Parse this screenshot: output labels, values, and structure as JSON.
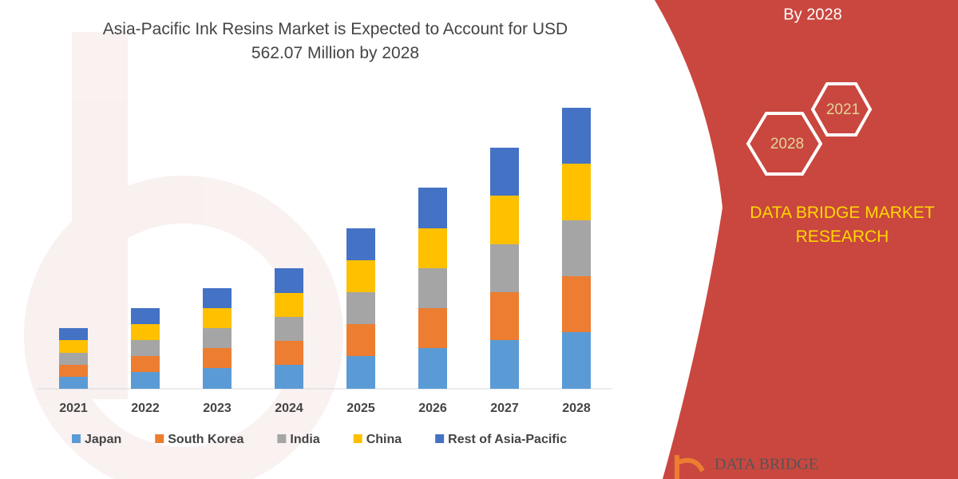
{
  "chart_data": {
    "type": "stacked-bar",
    "title": "Asia-Pacific Ink Resins Market is Expected to Account for USD 562.07 Million by 2028",
    "categories": [
      "2021",
      "2022",
      "2023",
      "2024",
      "2025",
      "2026",
      "2027",
      "2028"
    ],
    "series": [
      {
        "name": "Japan",
        "color": "#5b9bd5",
        "values": [
          15,
          21,
          26,
          30,
          41,
          51,
          61,
          71
        ]
      },
      {
        "name": "South Korea",
        "color": "#ed7d31",
        "values": [
          15,
          20,
          25,
          30,
          40,
          50,
          60,
          70
        ]
      },
      {
        "name": "India",
        "color": "#a5a5a5",
        "values": [
          15,
          20,
          25,
          30,
          40,
          50,
          60,
          70
        ]
      },
      {
        "name": "China",
        "color": "#ffc000",
        "values": [
          16,
          20,
          25,
          30,
          40,
          50,
          61,
          71
        ]
      },
      {
        "name": "Rest of Asia-Pacific",
        "color": "#4472c4",
        "values": [
          15,
          20,
          25,
          31,
          40,
          51,
          60,
          70
        ]
      }
    ],
    "legend": "bottom"
  },
  "panel": {
    "heading": "By 2028",
    "hex_top": "2021",
    "hex_bottom": "2028",
    "brand": [
      "DATA BRIDGE MARKET",
      "RESEARCH"
    ],
    "logo": "DATA BRIDGE"
  }
}
